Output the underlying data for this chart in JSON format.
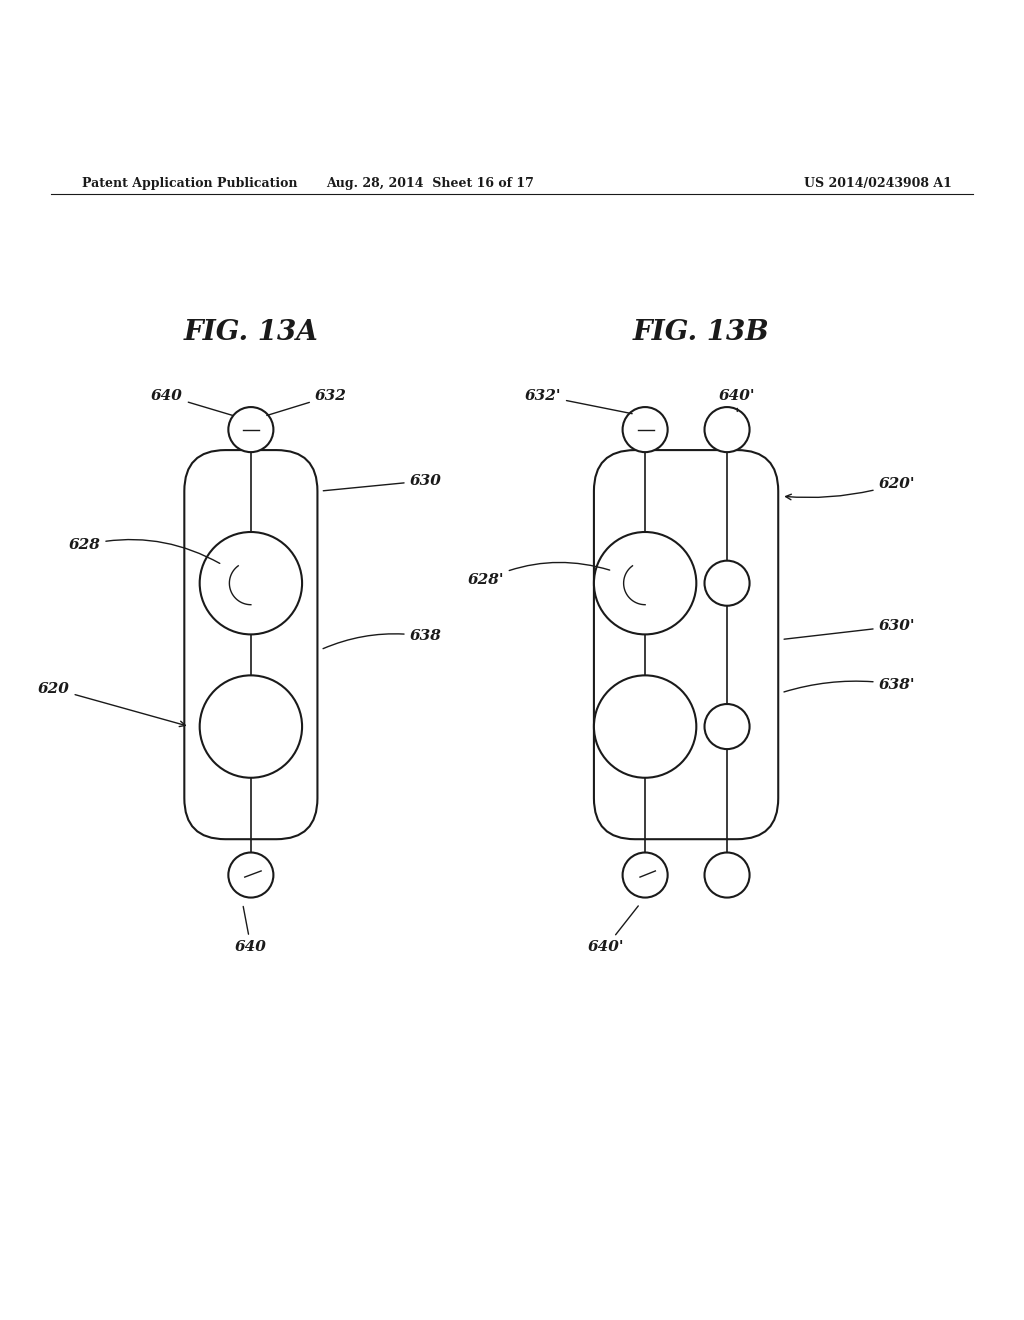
{
  "header_left": "Patent Application Publication",
  "header_center": "Aug. 28, 2014  Sheet 16 of 17",
  "header_right": "US 2014/0243908 A1",
  "fig_a_title": "FIG. 13A",
  "fig_b_title": "FIG. 13B",
  "background_color": "#ffffff",
  "line_color": "#1a1a1a"
}
